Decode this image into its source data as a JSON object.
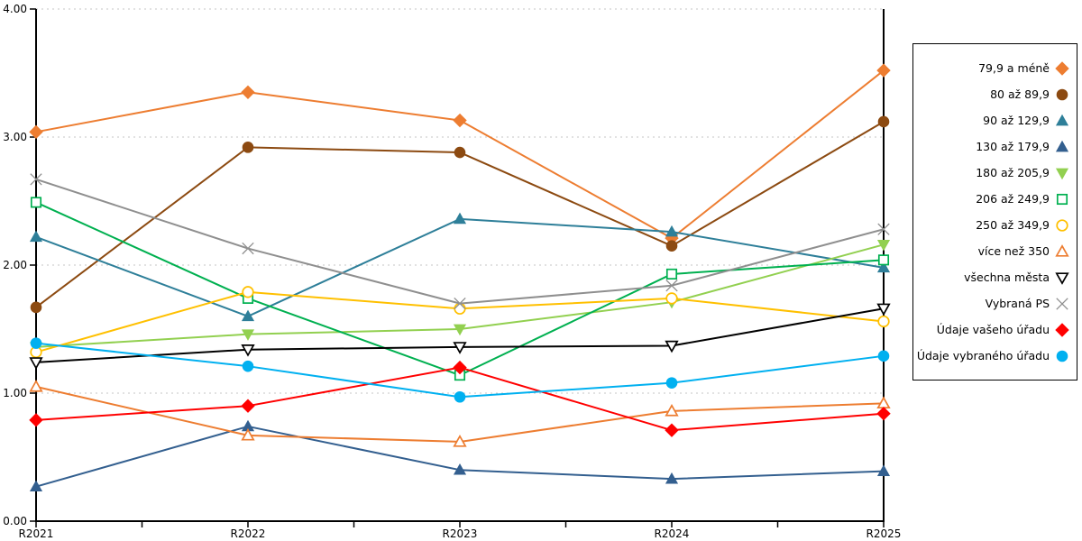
{
  "chart_data": {
    "type": "line",
    "title": "",
    "xlabel": "",
    "ylabel": "",
    "x": [
      "R2021",
      "R2022",
      "R2023",
      "R2024",
      "R2025"
    ],
    "ylim": [
      0,
      4
    ],
    "yticks": [
      "0.00",
      "1.00",
      "2.00",
      "3.00",
      "4.00"
    ],
    "grid": "horizontal-dotted",
    "legend_position": "right-outside",
    "series": [
      {
        "name": "79,9 a méně",
        "color": "#ED7D31",
        "marker": "diamond",
        "marker_fill": "solid",
        "values": [
          3.04,
          3.35,
          3.13,
          2.21,
          3.52
        ]
      },
      {
        "name": "80 až 89,9",
        "color": "#8C4A11",
        "marker": "circle",
        "marker_fill": "solid",
        "values": [
          1.67,
          2.92,
          2.88,
          2.15,
          3.12
        ]
      },
      {
        "name": "90 až 129,9",
        "color": "#2E7F99",
        "marker": "triangle-up",
        "marker_fill": "solid",
        "values": [
          2.22,
          1.6,
          2.36,
          2.26,
          1.98
        ]
      },
      {
        "name": "130 až 179,9",
        "color": "#335F8F",
        "marker": "triangle-up",
        "marker_fill": "solid",
        "values": [
          0.27,
          0.74,
          0.4,
          0.33,
          0.39
        ]
      },
      {
        "name": "180 až 205,9",
        "color": "#92D050",
        "marker": "triangle-down",
        "marker_fill": "solid",
        "values": [
          1.36,
          1.46,
          1.5,
          1.71,
          2.16
        ]
      },
      {
        "name": "206 až 249,9",
        "color": "#00B050",
        "marker": "square",
        "marker_fill": "open",
        "values": [
          2.49,
          1.74,
          1.14,
          1.93,
          2.04
        ]
      },
      {
        "name": "250 až 349,9",
        "color": "#FFC000",
        "marker": "circle",
        "marker_fill": "open",
        "values": [
          1.32,
          1.79,
          1.66,
          1.74,
          1.56
        ]
      },
      {
        "name": "více než 350",
        "color": "#ED7D31",
        "marker": "triangle-up",
        "marker_fill": "open",
        "values": [
          1.05,
          0.67,
          0.62,
          0.86,
          0.92
        ]
      },
      {
        "name": "všechna města",
        "color": "#000000",
        "marker": "triangle-down",
        "marker_fill": "open",
        "values": [
          1.24,
          1.34,
          1.36,
          1.37,
          1.66
        ]
      },
      {
        "name": "Vybraná PS",
        "color": "#8F8F8F",
        "marker": "x",
        "marker_fill": "open",
        "values": [
          2.67,
          2.13,
          1.7,
          1.84,
          2.28
        ]
      },
      {
        "name": "Údaje vašeho úřadu",
        "color": "#FF0000",
        "marker": "diamond",
        "marker_fill": "solid",
        "values": [
          0.79,
          0.9,
          1.2,
          0.71,
          0.84
        ]
      },
      {
        "name": "Údaje vybraného úřadu",
        "color": "#00B0F0",
        "marker": "circle",
        "marker_fill": "solid",
        "values": [
          1.39,
          1.21,
          0.97,
          1.08,
          1.29
        ]
      }
    ]
  },
  "colors": {
    "background": "#FFFFFF",
    "axis": "#000000",
    "gridline": "#C6C6C6",
    "legend_border": "#000000"
  }
}
